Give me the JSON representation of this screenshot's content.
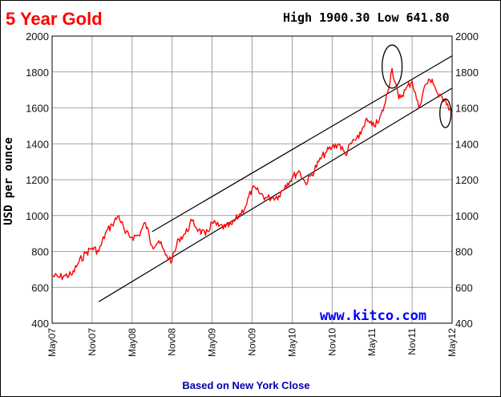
{
  "chart_data": {
    "type": "line",
    "title": "5 Year Gold",
    "stats": "High 1900.30 Low 641.80",
    "ylabel": "USD per ounce",
    "xlabel": "",
    "watermark": "www.kitco.com",
    "footer": "Based on New York Close",
    "ylim": [
      400,
      2000
    ],
    "yticks": [
      "400",
      "600",
      "800",
      "1000",
      "1200",
      "1400",
      "1600",
      "1800",
      "2000"
    ],
    "xlim": [
      "2007-05",
      "2012-05"
    ],
    "xticks": [
      {
        "label": "May07",
        "date": "2007-05"
      },
      {
        "label": "Nov07",
        "date": "2007-11"
      },
      {
        "label": "May08",
        "date": "2008-05"
      },
      {
        "label": "Nov08",
        "date": "2008-11"
      },
      {
        "label": "May09",
        "date": "2009-05"
      },
      {
        "label": "Nov09",
        "date": "2009-11"
      },
      {
        "label": "May10",
        "date": "2010-05"
      },
      {
        "label": "Nov10",
        "date": "2010-11"
      },
      {
        "label": "May11",
        "date": "2011-05"
      },
      {
        "label": "Nov11",
        "date": "2011-11"
      },
      {
        "label": "May12",
        "date": "2012-05"
      }
    ],
    "grid": true,
    "series": [
      {
        "color": "#ff0000",
        "points": [
          [
            "2007-05",
            665
          ],
          [
            "2007-06",
            655
          ],
          [
            "2007-07",
            665
          ],
          [
            "2007-08",
            670
          ],
          [
            "2007-09",
            740
          ],
          [
            "2007-10",
            790
          ],
          [
            "2007-11",
            820
          ],
          [
            "2007-12",
            800
          ],
          [
            "2008-01",
            900
          ],
          [
            "2008-02",
            950
          ],
          [
            "2008-03",
            1000
          ],
          [
            "2008-04",
            900
          ],
          [
            "2008-05",
            880
          ],
          [
            "2008-06",
            890
          ],
          [
            "2008-07",
            960
          ],
          [
            "2008-08",
            830
          ],
          [
            "2008-09",
            860
          ],
          [
            "2008-10",
            780
          ],
          [
            "2008-11",
            750
          ],
          [
            "2008-12",
            870
          ],
          [
            "2009-01",
            900
          ],
          [
            "2009-02",
            970
          ],
          [
            "2009-03",
            920
          ],
          [
            "2009-04",
            890
          ],
          [
            "2009-05",
            960
          ],
          [
            "2009-06",
            940
          ],
          [
            "2009-07",
            935
          ],
          [
            "2009-08",
            950
          ],
          [
            "2009-09",
            1000
          ],
          [
            "2009-10",
            1050
          ],
          [
            "2009-11",
            1150
          ],
          [
            "2009-12",
            1130
          ],
          [
            "2010-01",
            1100
          ],
          [
            "2010-02",
            1100
          ],
          [
            "2010-03",
            1110
          ],
          [
            "2010-04",
            1170
          ],
          [
            "2010-05",
            1210
          ],
          [
            "2010-06",
            1250
          ],
          [
            "2010-07",
            1180
          ],
          [
            "2010-08",
            1230
          ],
          [
            "2010-09",
            1300
          ],
          [
            "2010-10",
            1350
          ],
          [
            "2010-11",
            1380
          ],
          [
            "2010-12",
            1400
          ],
          [
            "2011-01",
            1340
          ],
          [
            "2011-02",
            1410
          ],
          [
            "2011-03",
            1430
          ],
          [
            "2011-04",
            1530
          ],
          [
            "2011-05",
            1500
          ],
          [
            "2011-06",
            1520
          ],
          [
            "2011-07",
            1630
          ],
          [
            "2011-08",
            1820
          ],
          [
            "2011-09",
            1650
          ],
          [
            "2011-10",
            1700
          ],
          [
            "2011-11",
            1750
          ],
          [
            "2011-12",
            1600
          ],
          [
            "2012-01",
            1730
          ],
          [
            "2012-02",
            1760
          ],
          [
            "2012-03",
            1660
          ],
          [
            "2012-04",
            1650
          ],
          [
            "2012-05",
            1560
          ]
        ]
      }
    ],
    "trendlines": [
      {
        "color": "#000000",
        "from": [
          "2008-08",
          910
        ],
        "to": [
          "2012-05",
          1890
        ]
      },
      {
        "color": "#000000",
        "from": [
          "2007-12",
          520
        ],
        "to": [
          "2012-05",
          1710
        ]
      }
    ],
    "annotations": [
      {
        "shape": "ellipse",
        "center": [
          "2011-08",
          1830
        ],
        "rx_days": 45,
        "ry_value": 120
      },
      {
        "shape": "ellipse",
        "center": [
          "2012-04",
          1570
        ],
        "rx_days": 25,
        "ry_value": 80
      }
    ],
    "colors": {
      "line": "#ff0000",
      "title": "#ff0000",
      "watermark": "#0000ff",
      "footer": "#0000aa",
      "grid": "#888888"
    }
  }
}
